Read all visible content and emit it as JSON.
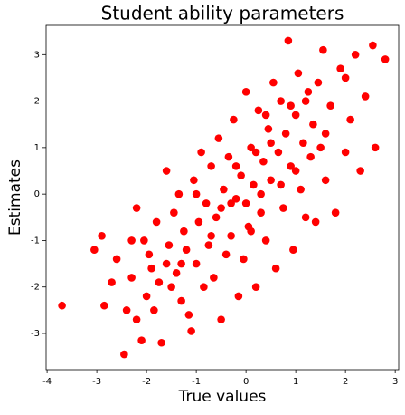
{
  "chart_data": {
    "type": "scatter",
    "title": "Student ability parameters",
    "x_label": "True values",
    "y_label": "Estimates",
    "color": "#ff0000",
    "grid": false,
    "xlim": [
      -4.02,
      3.07
    ],
    "ylim": [
      -3.78,
      3.63
    ],
    "xticks": [
      -4,
      -3,
      -2,
      -1,
      0,
      1,
      2,
      3
    ],
    "yticks": [
      -3,
      -2,
      -1,
      0,
      1,
      2,
      3
    ],
    "x": [
      -3.7,
      -3.05,
      -2.9,
      -2.85,
      -2.7,
      -2.6,
      -2.45,
      -2.4,
      -2.3,
      -2.2,
      -2.2,
      -2.1,
      -2.05,
      -2.0,
      -1.95,
      -1.9,
      -1.85,
      -1.8,
      -1.75,
      -1.7,
      -1.6,
      -1.55,
      -1.5,
      -1.45,
      -1.4,
      -1.35,
      -1.3,
      -1.25,
      -1.2,
      -1.15,
      -1.1,
      -1.05,
      -1.0,
      -0.95,
      -0.9,
      -0.85,
      -0.8,
      -0.75,
      -0.7,
      -0.65,
      -0.6,
      -0.55,
      -0.5,
      -0.45,
      -0.4,
      -0.35,
      -0.3,
      -0.25,
      -0.2,
      -0.15,
      -0.1,
      -0.05,
      0.0,
      0.05,
      0.1,
      0.15,
      0.2,
      0.25,
      0.3,
      0.35,
      0.4,
      0.45,
      0.5,
      0.55,
      0.6,
      0.65,
      0.7,
      0.75,
      0.8,
      0.85,
      0.9,
      0.95,
      1.0,
      1.05,
      1.1,
      1.15,
      1.2,
      1.25,
      1.3,
      1.35,
      1.4,
      1.45,
      1.5,
      1.55,
      1.6,
      1.7,
      1.8,
      1.9,
      2.0,
      2.1,
      2.2,
      2.3,
      2.4,
      2.55,
      2.6,
      2.8,
      -1.0,
      -0.5,
      0.0,
      0.5,
      1.0,
      -0.2,
      0.3,
      0.1,
      -0.7,
      0.7,
      1.2,
      -1.3,
      0.9,
      -0.3,
      0.4,
      1.6,
      -1.6,
      2.0,
      -2.3,
      0.2
    ],
    "values": [
      -2.4,
      -1.2,
      -0.9,
      -2.4,
      -1.9,
      -1.4,
      -3.45,
      -2.5,
      -1.8,
      -0.3,
      -2.7,
      -3.15,
      -1.0,
      -2.2,
      -1.3,
      -1.6,
      -2.5,
      -0.6,
      -1.9,
      -3.2,
      0.5,
      -1.1,
      -2.0,
      -0.4,
      -1.7,
      0.0,
      -2.3,
      -0.8,
      -1.2,
      -2.6,
      -2.95,
      0.3,
      -1.5,
      -0.6,
      0.9,
      -2.0,
      -0.2,
      -1.1,
      0.6,
      -1.8,
      -0.5,
      1.2,
      -2.7,
      0.1,
      -1.3,
      0.8,
      -0.9,
      1.6,
      -0.1,
      -2.2,
      0.4,
      -1.4,
      2.2,
      -0.7,
      1.0,
      0.2,
      -2.0,
      1.8,
      -0.4,
      0.7,
      -1.0,
      1.4,
      0.3,
      2.4,
      -1.6,
      0.9,
      2.0,
      -0.3,
      1.3,
      3.3,
      0.6,
      -1.2,
      1.7,
      2.6,
      0.1,
      1.1,
      -0.5,
      2.2,
      0.8,
      1.5,
      -0.6,
      2.4,
      1.0,
      3.1,
      0.3,
      1.9,
      -0.4,
      2.7,
      0.9,
      1.6,
      3.0,
      0.5,
      2.1,
      3.2,
      1.0,
      2.9,
      0.0,
      -0.3,
      -0.2,
      1.1,
      0.5,
      0.6,
      0.0,
      -0.8,
      -0.9,
      0.2,
      2.0,
      -1.5,
      1.9,
      -0.2,
      1.7,
      1.3,
      -1.5,
      2.5,
      -1.0,
      0.9
    ]
  }
}
